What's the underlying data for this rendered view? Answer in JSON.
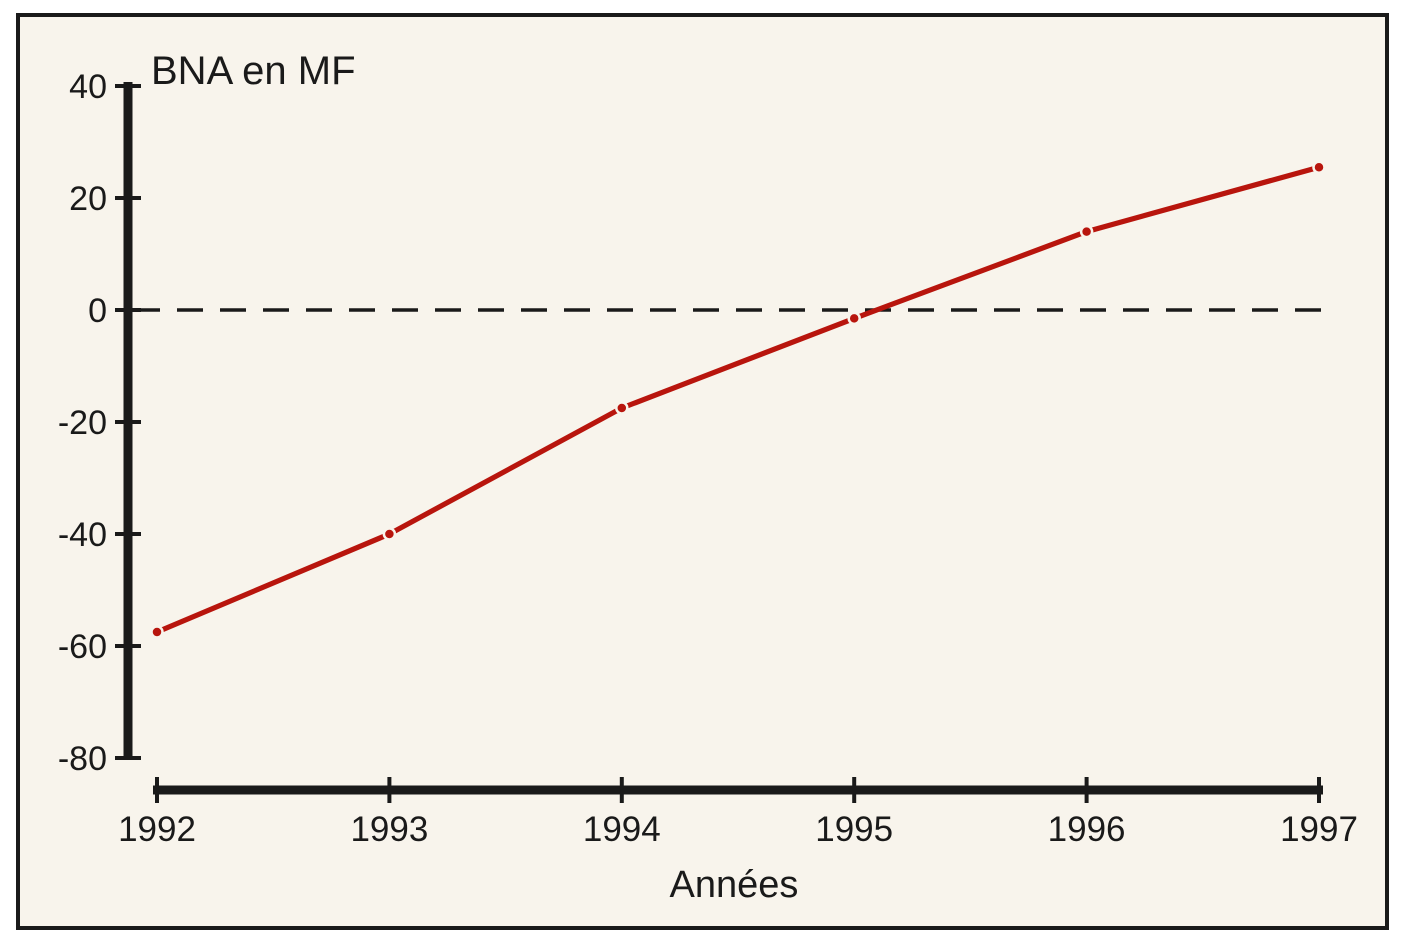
{
  "colors": {
    "page_background": "#ffffff",
    "chart_background": "#f8f4ec",
    "ink": "#1a1a1a",
    "line_color": "#b8150d"
  },
  "chart_data": {
    "type": "line",
    "title": "BNA en MF",
    "xlabel": "Années",
    "ylabel": "BNA en MF",
    "x_labels": [
      "1992",
      "1993",
      "1994",
      "1995",
      "1996",
      "1997"
    ],
    "x": [
      1992,
      1993,
      1994,
      1995,
      1996,
      1997
    ],
    "series": [
      {
        "name": "BNA en MF",
        "values": [
          -57.5,
          -40,
          -17.5,
          -1.5,
          14,
          25.5
        ]
      }
    ],
    "yticks": [
      40,
      20,
      0,
      -20,
      -40,
      -60,
      -80
    ],
    "ylim": [
      -80,
      40
    ],
    "grid": false,
    "legend": false,
    "zero_line_style": "dashed",
    "marker": "circle"
  }
}
